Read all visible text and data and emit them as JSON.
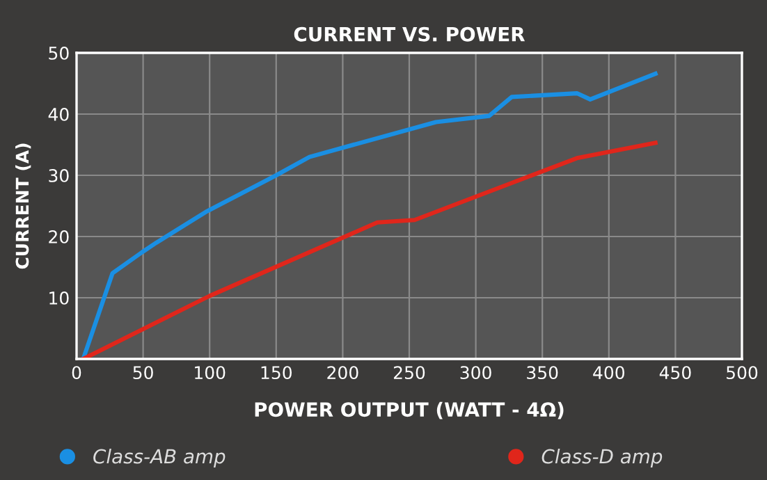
{
  "chart_data": {
    "type": "line",
    "title": "CURRENT VS. POWER",
    "xlabel": "POWER OUTPUT (WATT - 4Ω)",
    "ylabel": "CURRENT (A)",
    "xlim": [
      0,
      500
    ],
    "xticks": [
      0,
      50,
      100,
      150,
      200,
      250,
      300,
      350,
      400,
      450,
      500
    ],
    "ylim": [
      0,
      50
    ],
    "yticks": [
      10,
      20,
      30,
      40,
      50
    ],
    "grid": true,
    "legend": "bottom",
    "line_style": "solid",
    "series": [
      {
        "name": "Class-AB amp",
        "color": "#1a8fe3",
        "x": [
          5,
          27,
          49,
          60,
          97,
          150,
          175,
          270,
          310,
          327,
          376,
          386,
          435
        ],
        "values": [
          0,
          14,
          17.4,
          19,
          24,
          30,
          33,
          38.7,
          39.7,
          42.8,
          43.4,
          42.4,
          46.6
        ]
      },
      {
        "name": "Class-D amp",
        "color": "#e0261b",
        "x": [
          5,
          100,
          226,
          254,
          376,
          435
        ],
        "values": [
          0,
          10.3,
          22.3,
          22.7,
          32.8,
          35.3
        ]
      }
    ]
  }
}
